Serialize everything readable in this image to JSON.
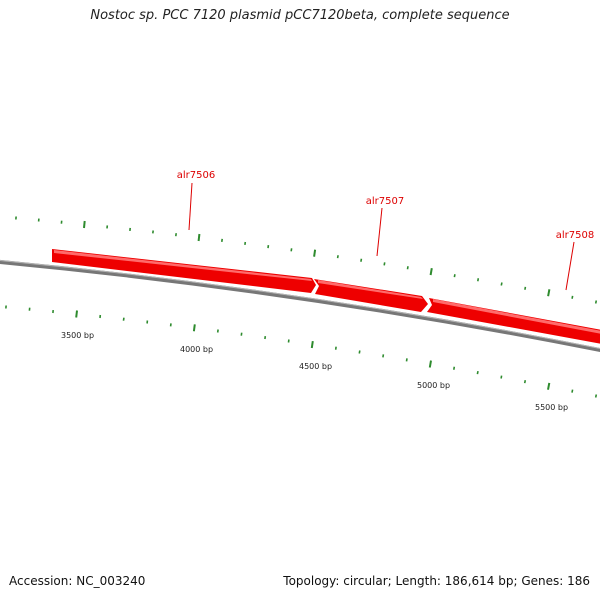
{
  "title": "Nostoc sp. PCC 7120 plasmid pCC7120beta, complete sequence",
  "footer": {
    "accession_text": "Accession: NC_003240",
    "summary_text": "Topology: circular; Length: 186,614 bp; Genes: 186"
  },
  "colors": {
    "gene_fill": "#ee0000",
    "gene_highlight": "#ff6b6b",
    "backbone": "#777777",
    "tick": "#2e8b2e",
    "gene_label": "#dd0000"
  },
  "genes": [
    {
      "name": "alr7506",
      "start_bp": 3420,
      "end_bp": 4565,
      "strand": "+"
    },
    {
      "name": "alr7507",
      "start_bp": 4565,
      "end_bp": 5060,
      "strand": "+"
    },
    {
      "name": "alr7508",
      "start_bp": 5060,
      "end_bp": 5800,
      "strand": "+"
    }
  ],
  "bp_labels": [
    "3500 bp",
    "4000 bp",
    "4500 bp",
    "5000 bp",
    "5500 bp"
  ]
}
